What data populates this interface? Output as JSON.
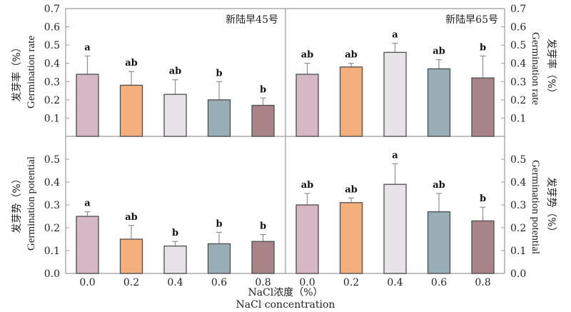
{
  "chart_data": {
    "type": "bar",
    "x_categories": [
      "0.0",
      "0.2",
      "0.4",
      "0.6",
      "0.8"
    ],
    "xlabel_cn": "NaCl浓度（%）",
    "xlabel_en": "NaCl concentration",
    "bar_colors": [
      "#d5b8c4",
      "#f4b07c",
      "#e8e2e9",
      "#98adb5",
      "#a88488"
    ],
    "rows": [
      {
        "ylabel_cn": "发芽率（%）",
        "ylabel_en": "Germination rate",
        "ylim": [
          0,
          0.7
        ],
        "yticks": [
          "0.1",
          "0.2",
          "0.3",
          "0.4",
          "0.5",
          "0.6",
          "0.7"
        ],
        "ytick_values": [
          0.1,
          0.2,
          0.3,
          0.4,
          0.5,
          0.6,
          0.7
        ]
      },
      {
        "ylabel_cn": "发芽势（%）",
        "ylabel_en": "Germination potential",
        "ylim": [
          0,
          0.6
        ],
        "yticks": [
          "0.0",
          "0.1",
          "0.2",
          "0.3",
          "0.4",
          "0.5"
        ],
        "ytick_values": [
          0.0,
          0.1,
          0.2,
          0.3,
          0.4,
          0.5
        ]
      }
    ],
    "panels": [
      {
        "row": 0,
        "col": 0,
        "title": "新陆早45号",
        "metric": "Germination rate",
        "values": [
          0.34,
          0.28,
          0.23,
          0.2,
          0.17
        ],
        "error_upper": [
          0.44,
          0.355,
          0.31,
          0.3,
          0.21
        ],
        "significance": [
          "a",
          "ab",
          "ab",
          "b",
          "b"
        ]
      },
      {
        "row": 0,
        "col": 1,
        "title": "新陆早65号",
        "metric": "Germination rate",
        "values": [
          0.34,
          0.38,
          0.46,
          0.37,
          0.32
        ],
        "error_upper": [
          0.4,
          0.4,
          0.51,
          0.42,
          0.44
        ],
        "significance": [
          "ab",
          "ab",
          "a",
          "ab",
          "b"
        ]
      },
      {
        "row": 1,
        "col": 0,
        "title": "",
        "metric": "Germination potential",
        "values": [
          0.25,
          0.15,
          0.12,
          0.13,
          0.14
        ],
        "error_upper": [
          0.27,
          0.21,
          0.14,
          0.18,
          0.17
        ],
        "significance": [
          "a",
          "ab",
          "b",
          "b",
          "b"
        ]
      },
      {
        "row": 1,
        "col": 1,
        "title": "",
        "metric": "Germination potential",
        "values": [
          0.3,
          0.31,
          0.39,
          0.27,
          0.23
        ],
        "error_upper": [
          0.35,
          0.33,
          0.48,
          0.35,
          0.29
        ],
        "significance": [
          "ab",
          "ab",
          "a",
          "ab",
          "b"
        ]
      }
    ]
  }
}
